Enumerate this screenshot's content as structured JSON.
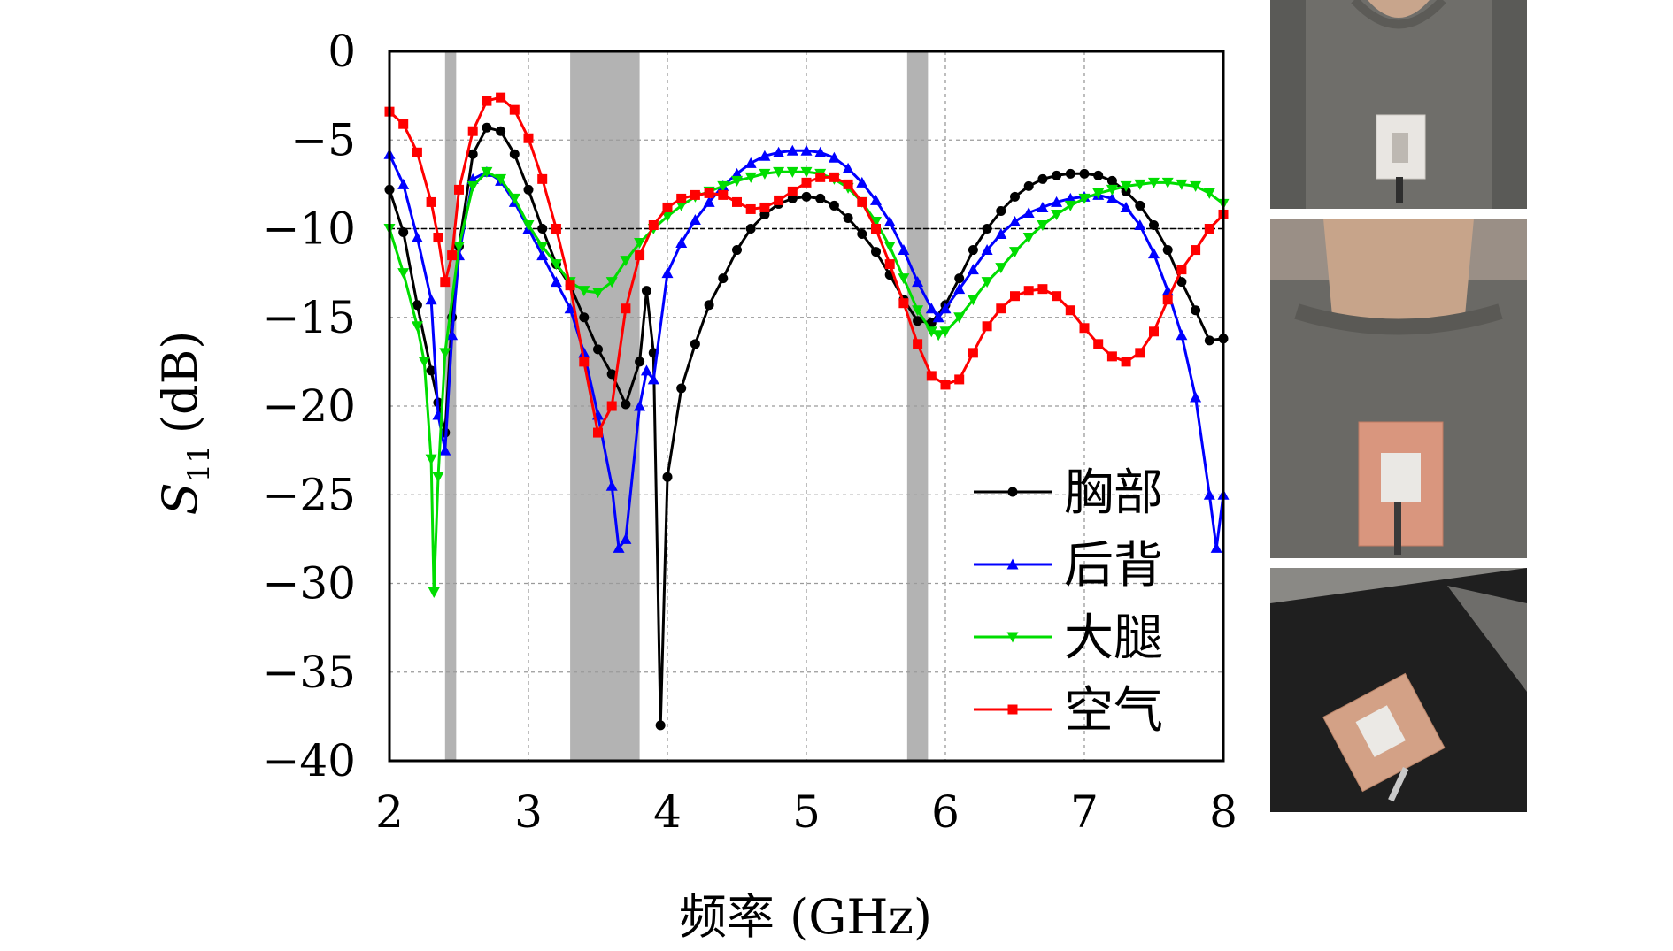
{
  "chart_data": {
    "type": "line",
    "xlabel": "频率 (GHz)",
    "ylabel_main": "S",
    "ylabel_sub": "11",
    "ylabel_unit": "(dB)",
    "xlim": [
      2,
      8
    ],
    "ylim": [
      -40,
      0
    ],
    "xticks": [
      2,
      3,
      4,
      5,
      6,
      7,
      8
    ],
    "yticks": [
      0,
      -5,
      -10,
      -15,
      -20,
      -25,
      -30,
      -35,
      -40
    ],
    "grid": true,
    "reference_line": -10,
    "legend_position": "bottom-right",
    "shaded_bands": [
      [
        2.4,
        2.48
      ],
      [
        3.3,
        3.8
      ],
      [
        5.725,
        5.875
      ]
    ],
    "series": [
      {
        "name": "胸部",
        "color": "#000000",
        "marker": "circle",
        "points": [
          [
            2.0,
            -7.8
          ],
          [
            2.1,
            -10.2
          ],
          [
            2.2,
            -14.3
          ],
          [
            2.3,
            -18.0
          ],
          [
            2.35,
            -19.8
          ],
          [
            2.4,
            -21.5
          ],
          [
            2.45,
            -15.0
          ],
          [
            2.5,
            -11.0
          ],
          [
            2.6,
            -5.8
          ],
          [
            2.7,
            -4.3
          ],
          [
            2.8,
            -4.5
          ],
          [
            2.9,
            -5.8
          ],
          [
            3.0,
            -7.8
          ],
          [
            3.1,
            -10.0
          ],
          [
            3.2,
            -12.0
          ],
          [
            3.3,
            -13.2
          ],
          [
            3.4,
            -15.0
          ],
          [
            3.5,
            -16.8
          ],
          [
            3.6,
            -18.2
          ],
          [
            3.7,
            -19.9
          ],
          [
            3.8,
            -17.5
          ],
          [
            3.85,
            -13.5
          ],
          [
            3.9,
            -17.0
          ],
          [
            3.95,
            -38.0
          ],
          [
            4.0,
            -24.0
          ],
          [
            4.1,
            -19.0
          ],
          [
            4.2,
            -16.5
          ],
          [
            4.3,
            -14.3
          ],
          [
            4.4,
            -12.8
          ],
          [
            4.5,
            -11.2
          ],
          [
            4.6,
            -10.0
          ],
          [
            4.7,
            -9.2
          ],
          [
            4.8,
            -8.6
          ],
          [
            4.9,
            -8.3
          ],
          [
            5.0,
            -8.2
          ],
          [
            5.1,
            -8.3
          ],
          [
            5.2,
            -8.7
          ],
          [
            5.3,
            -9.4
          ],
          [
            5.4,
            -10.3
          ],
          [
            5.5,
            -11.3
          ],
          [
            5.6,
            -12.6
          ],
          [
            5.7,
            -14.0
          ],
          [
            5.8,
            -15.2
          ],
          [
            5.9,
            -15.3
          ],
          [
            6.0,
            -14.3
          ],
          [
            6.1,
            -12.8
          ],
          [
            6.2,
            -11.2
          ],
          [
            6.3,
            -10.0
          ],
          [
            6.4,
            -9.0
          ],
          [
            6.5,
            -8.2
          ],
          [
            6.6,
            -7.6
          ],
          [
            6.7,
            -7.2
          ],
          [
            6.8,
            -7.0
          ],
          [
            6.9,
            -6.9
          ],
          [
            7.0,
            -6.9
          ],
          [
            7.1,
            -7.0
          ],
          [
            7.2,
            -7.3
          ],
          [
            7.3,
            -7.9
          ],
          [
            7.4,
            -8.7
          ],
          [
            7.5,
            -9.8
          ],
          [
            7.6,
            -11.2
          ],
          [
            7.7,
            -13.0
          ],
          [
            7.8,
            -14.6
          ],
          [
            7.9,
            -16.3
          ],
          [
            8.0,
            -16.2
          ]
        ]
      },
      {
        "name": "后背",
        "color": "#0000ff",
        "marker": "triangle-up",
        "points": [
          [
            2.0,
            -5.8
          ],
          [
            2.1,
            -7.5
          ],
          [
            2.2,
            -10.5
          ],
          [
            2.3,
            -14.0
          ],
          [
            2.35,
            -20.5
          ],
          [
            2.4,
            -22.5
          ],
          [
            2.45,
            -16.0
          ],
          [
            2.5,
            -11.5
          ],
          [
            2.6,
            -7.2
          ],
          [
            2.7,
            -6.8
          ],
          [
            2.8,
            -7.3
          ],
          [
            2.9,
            -8.5
          ],
          [
            3.0,
            -10.0
          ],
          [
            3.1,
            -11.5
          ],
          [
            3.2,
            -13.0
          ],
          [
            3.3,
            -14.5
          ],
          [
            3.4,
            -17.0
          ],
          [
            3.5,
            -20.5
          ],
          [
            3.6,
            -24.5
          ],
          [
            3.65,
            -28.0
          ],
          [
            3.7,
            -27.5
          ],
          [
            3.8,
            -20.0
          ],
          [
            3.85,
            -18.0
          ],
          [
            3.9,
            -18.5
          ],
          [
            4.0,
            -12.5
          ],
          [
            4.1,
            -10.8
          ],
          [
            4.2,
            -9.5
          ],
          [
            4.3,
            -8.5
          ],
          [
            4.4,
            -7.6
          ],
          [
            4.5,
            -6.9
          ],
          [
            4.6,
            -6.3
          ],
          [
            4.7,
            -5.9
          ],
          [
            4.8,
            -5.7
          ],
          [
            4.9,
            -5.6
          ],
          [
            5.0,
            -5.6
          ],
          [
            5.1,
            -5.7
          ],
          [
            5.2,
            -6.0
          ],
          [
            5.3,
            -6.6
          ],
          [
            5.4,
            -7.4
          ],
          [
            5.5,
            -8.4
          ],
          [
            5.6,
            -9.6
          ],
          [
            5.7,
            -11.2
          ],
          [
            5.8,
            -13.0
          ],
          [
            5.9,
            -14.5
          ],
          [
            5.95,
            -15.0
          ],
          [
            6.0,
            -14.5
          ],
          [
            6.1,
            -13.4
          ],
          [
            6.2,
            -12.3
          ],
          [
            6.3,
            -11.2
          ],
          [
            6.4,
            -10.3
          ],
          [
            6.5,
            -9.6
          ],
          [
            6.6,
            -9.1
          ],
          [
            6.7,
            -8.8
          ],
          [
            6.8,
            -8.5
          ],
          [
            6.9,
            -8.3
          ],
          [
            7.0,
            -8.2
          ],
          [
            7.1,
            -8.1
          ],
          [
            7.2,
            -8.3
          ],
          [
            7.3,
            -8.8
          ],
          [
            7.4,
            -9.8
          ],
          [
            7.5,
            -11.4
          ],
          [
            7.6,
            -13.5
          ],
          [
            7.7,
            -16.0
          ],
          [
            7.8,
            -19.5
          ],
          [
            7.9,
            -25.0
          ],
          [
            7.95,
            -28.0
          ],
          [
            8.0,
            -25.0
          ]
        ]
      },
      {
        "name": "大腿",
        "color": "#00dd00",
        "marker": "triangle-down",
        "points": [
          [
            2.0,
            -10.0
          ],
          [
            2.1,
            -12.5
          ],
          [
            2.2,
            -15.5
          ],
          [
            2.25,
            -17.5
          ],
          [
            2.3,
            -23.0
          ],
          [
            2.32,
            -30.5
          ],
          [
            2.35,
            -24.0
          ],
          [
            2.4,
            -17.0
          ],
          [
            2.5,
            -11.0
          ],
          [
            2.6,
            -7.6
          ],
          [
            2.7,
            -6.8
          ],
          [
            2.8,
            -7.2
          ],
          [
            2.9,
            -8.3
          ],
          [
            3.0,
            -9.8
          ],
          [
            3.1,
            -11.0
          ],
          [
            3.2,
            -12.0
          ],
          [
            3.3,
            -13.0
          ],
          [
            3.4,
            -13.5
          ],
          [
            3.5,
            -13.6
          ],
          [
            3.6,
            -13.0
          ],
          [
            3.7,
            -11.8
          ],
          [
            3.8,
            -10.8
          ],
          [
            3.9,
            -10.0
          ],
          [
            4.0,
            -9.3
          ],
          [
            4.1,
            -8.7
          ],
          [
            4.2,
            -8.2
          ],
          [
            4.3,
            -7.9
          ],
          [
            4.4,
            -7.6
          ],
          [
            4.5,
            -7.3
          ],
          [
            4.6,
            -7.1
          ],
          [
            4.7,
            -6.9
          ],
          [
            4.8,
            -6.8
          ],
          [
            4.9,
            -6.8
          ],
          [
            5.0,
            -6.8
          ],
          [
            5.1,
            -6.9
          ],
          [
            5.2,
            -7.2
          ],
          [
            5.3,
            -7.7
          ],
          [
            5.4,
            -8.5
          ],
          [
            5.5,
            -9.6
          ],
          [
            5.6,
            -11.0
          ],
          [
            5.7,
            -12.8
          ],
          [
            5.8,
            -14.6
          ],
          [
            5.9,
            -15.8
          ],
          [
            5.95,
            -16.0
          ],
          [
            6.0,
            -15.8
          ],
          [
            6.1,
            -15.0
          ],
          [
            6.2,
            -14.0
          ],
          [
            6.3,
            -13.0
          ],
          [
            6.4,
            -12.2
          ],
          [
            6.5,
            -11.3
          ],
          [
            6.6,
            -10.5
          ],
          [
            6.7,
            -9.8
          ],
          [
            6.8,
            -9.2
          ],
          [
            6.9,
            -8.7
          ],
          [
            7.0,
            -8.3
          ],
          [
            7.1,
            -8.0
          ],
          [
            7.2,
            -7.8
          ],
          [
            7.3,
            -7.6
          ],
          [
            7.4,
            -7.5
          ],
          [
            7.5,
            -7.4
          ],
          [
            7.6,
            -7.4
          ],
          [
            7.7,
            -7.5
          ],
          [
            7.8,
            -7.6
          ],
          [
            7.9,
            -8.0
          ],
          [
            8.0,
            -8.6
          ]
        ]
      },
      {
        "name": "空气",
        "color": "#ff0000",
        "marker": "square",
        "points": [
          [
            2.0,
            -3.4
          ],
          [
            2.1,
            -4.1
          ],
          [
            2.2,
            -5.7
          ],
          [
            2.3,
            -8.5
          ],
          [
            2.35,
            -10.5
          ],
          [
            2.4,
            -13.0
          ],
          [
            2.45,
            -11.5
          ],
          [
            2.5,
            -7.8
          ],
          [
            2.6,
            -4.5
          ],
          [
            2.7,
            -2.8
          ],
          [
            2.8,
            -2.6
          ],
          [
            2.9,
            -3.3
          ],
          [
            3.0,
            -4.9
          ],
          [
            3.1,
            -7.2
          ],
          [
            3.2,
            -10.0
          ],
          [
            3.3,
            -13.2
          ],
          [
            3.4,
            -17.5
          ],
          [
            3.5,
            -21.5
          ],
          [
            3.6,
            -20.0
          ],
          [
            3.7,
            -14.5
          ],
          [
            3.8,
            -11.5
          ],
          [
            3.9,
            -9.8
          ],
          [
            4.0,
            -8.8
          ],
          [
            4.1,
            -8.3
          ],
          [
            4.2,
            -8.1
          ],
          [
            4.3,
            -8.0
          ],
          [
            4.4,
            -8.1
          ],
          [
            4.5,
            -8.5
          ],
          [
            4.6,
            -8.9
          ],
          [
            4.7,
            -8.8
          ],
          [
            4.8,
            -8.4
          ],
          [
            4.9,
            -7.9
          ],
          [
            5.0,
            -7.4
          ],
          [
            5.1,
            -7.1
          ],
          [
            5.2,
            -7.1
          ],
          [
            5.3,
            -7.5
          ],
          [
            5.4,
            -8.5
          ],
          [
            5.5,
            -10.0
          ],
          [
            5.6,
            -12.0
          ],
          [
            5.7,
            -14.2
          ],
          [
            5.8,
            -16.5
          ],
          [
            5.9,
            -18.3
          ],
          [
            6.0,
            -18.8
          ],
          [
            6.1,
            -18.5
          ],
          [
            6.2,
            -17.0
          ],
          [
            6.3,
            -15.5
          ],
          [
            6.4,
            -14.5
          ],
          [
            6.5,
            -13.8
          ],
          [
            6.6,
            -13.5
          ],
          [
            6.7,
            -13.4
          ],
          [
            6.8,
            -13.8
          ],
          [
            6.9,
            -14.6
          ],
          [
            7.0,
            -15.6
          ],
          [
            7.1,
            -16.5
          ],
          [
            7.2,
            -17.2
          ],
          [
            7.3,
            -17.5
          ],
          [
            7.4,
            -17.0
          ],
          [
            7.5,
            -15.8
          ],
          [
            7.6,
            -14.0
          ],
          [
            7.7,
            -12.3
          ],
          [
            7.8,
            -11.2
          ],
          [
            7.9,
            -10.0
          ],
          [
            8.0,
            -9.2
          ]
        ]
      }
    ]
  },
  "photos": [
    {
      "name": "chest-photo",
      "shirt": "#6f6e6a",
      "shade": "#5c5b57"
    },
    {
      "name": "back-photo",
      "shirt": "#6a6965",
      "shade": "#585754"
    },
    {
      "name": "thigh-photo",
      "shirt": "#1f1f1f",
      "shade": "#2b2b2b"
    }
  ]
}
